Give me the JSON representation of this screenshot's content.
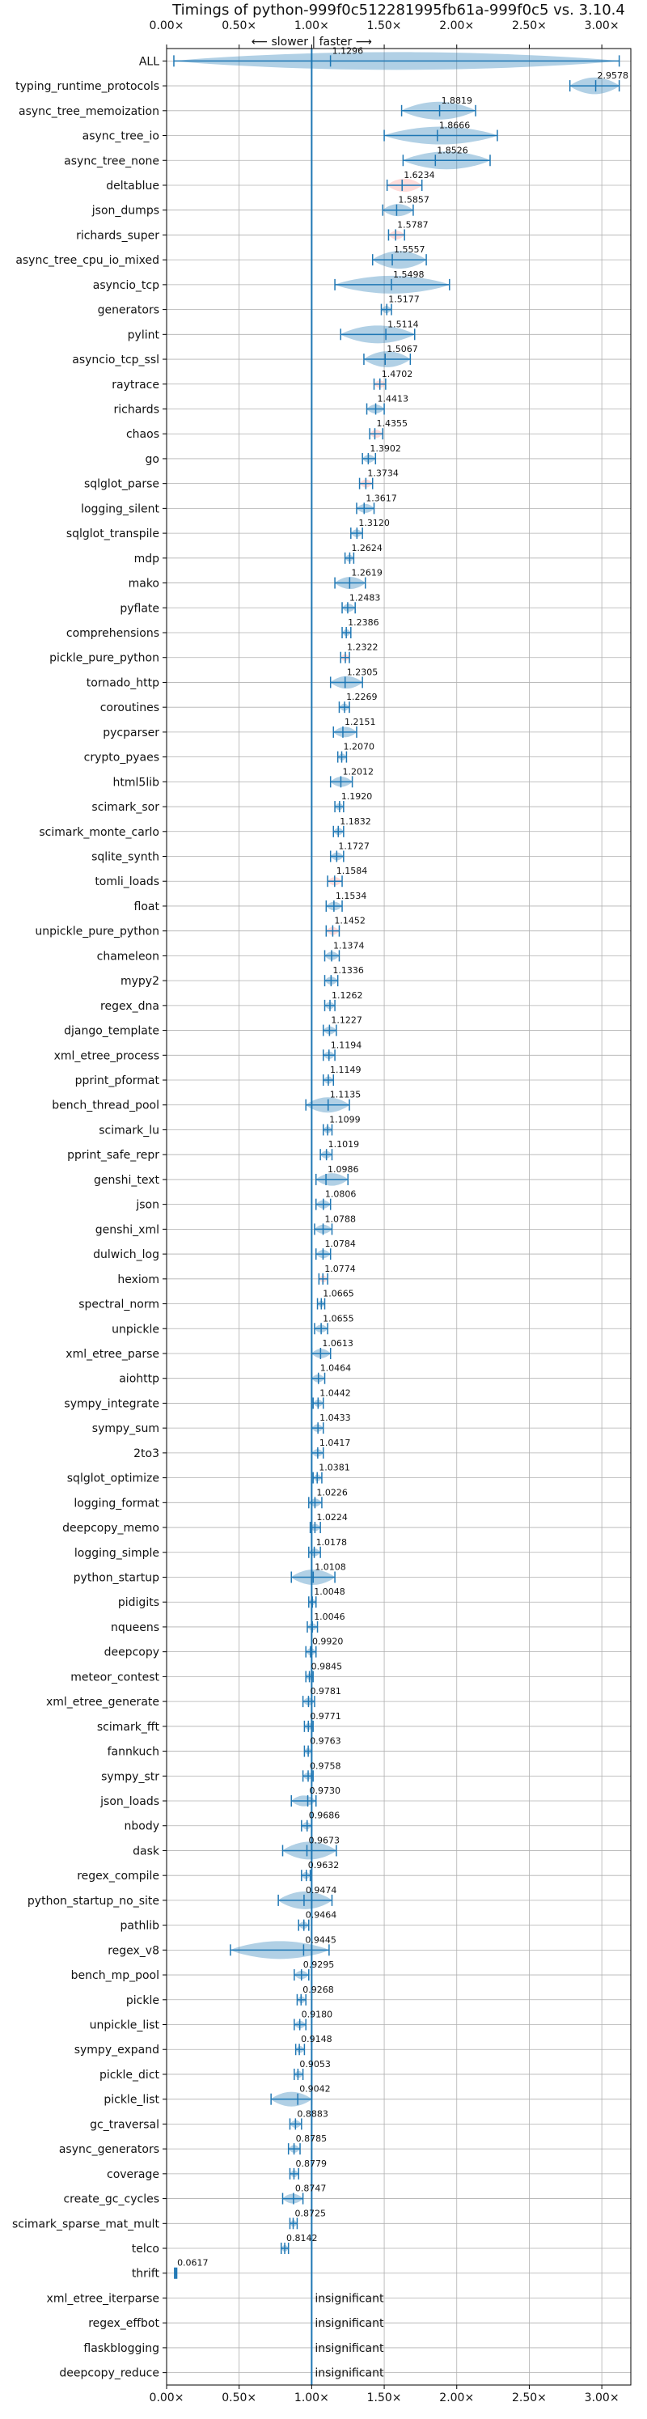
{
  "chart_data": {
    "type": "violin",
    "title": "Timings of python-999f0c512281995fb61a-999f0c5 vs. 3.10.4",
    "annotation": "⟵ slower | faster ⟶",
    "xlim": [
      0.0,
      3.2
    ],
    "xticks": [
      {
        "value": 0.0,
        "label": "0.00×"
      },
      {
        "value": 0.5,
        "label": "0.50×"
      },
      {
        "value": 1.0,
        "label": "1.00×"
      },
      {
        "value": 1.5,
        "label": "1.50×"
      },
      {
        "value": 2.0,
        "label": "2.00×"
      },
      {
        "value": 2.5,
        "label": "2.50×"
      },
      {
        "value": 3.0,
        "label": "3.00×"
      }
    ],
    "grid": true,
    "reference_line": 1.0,
    "significant_color": "#1f77b4",
    "insignificant_color": "#ff9896",
    "insignificant_label": "insignificant",
    "benchmarks": [
      {
        "name": "ALL",
        "value": 1.1296,
        "label": "1.1296",
        "min": 0.05,
        "max": 3.12
      },
      {
        "name": "typing_runtime_protocols",
        "value": 2.9578,
        "label": "2.9578",
        "min": 2.78,
        "max": 3.12
      },
      {
        "name": "async_tree_memoization",
        "value": 1.8819,
        "label": "1.8819",
        "min": 1.62,
        "max": 2.13
      },
      {
        "name": "async_tree_io",
        "value": 1.8666,
        "label": "1.8666",
        "min": 1.5,
        "max": 2.28
      },
      {
        "name": "async_tree_none",
        "value": 1.8526,
        "label": "1.8526",
        "min": 1.63,
        "max": 2.23
      },
      {
        "name": "deltablue",
        "value": 1.6234,
        "label": "1.6234",
        "min": 1.52,
        "max": 1.76,
        "insignificant": true
      },
      {
        "name": "json_dumps",
        "value": 1.5857,
        "label": "1.5857",
        "min": 1.49,
        "max": 1.7
      },
      {
        "name": "richards_super",
        "value": 1.5787,
        "label": "1.5787",
        "min": 1.53,
        "max": 1.64,
        "insignificant": true
      },
      {
        "name": "async_tree_cpu_io_mixed",
        "value": 1.5557,
        "label": "1.5557",
        "min": 1.42,
        "max": 1.79
      },
      {
        "name": "asyncio_tcp",
        "value": 1.5498,
        "label": "1.5498",
        "min": 1.16,
        "max": 1.95
      },
      {
        "name": "generators",
        "value": 1.5177,
        "label": "1.5177",
        "min": 1.48,
        "max": 1.55
      },
      {
        "name": "pylint",
        "value": 1.5114,
        "label": "1.5114",
        "min": 1.2,
        "max": 1.71
      },
      {
        "name": "asyncio_tcp_ssl",
        "value": 1.5067,
        "label": "1.5067",
        "min": 1.36,
        "max": 1.68
      },
      {
        "name": "raytrace",
        "value": 1.4702,
        "label": "1.4702",
        "min": 1.43,
        "max": 1.51,
        "insignificant": true
      },
      {
        "name": "richards",
        "value": 1.4413,
        "label": "1.4413",
        "min": 1.38,
        "max": 1.5
      },
      {
        "name": "chaos",
        "value": 1.4355,
        "label": "1.4355",
        "min": 1.4,
        "max": 1.49,
        "insignificant": true
      },
      {
        "name": "go",
        "value": 1.3902,
        "label": "1.3902",
        "min": 1.35,
        "max": 1.44
      },
      {
        "name": "sqlglot_parse",
        "value": 1.3734,
        "label": "1.3734",
        "min": 1.33,
        "max": 1.42,
        "insignificant": true
      },
      {
        "name": "logging_silent",
        "value": 1.3617,
        "label": "1.3617",
        "min": 1.31,
        "max": 1.43
      },
      {
        "name": "sqlglot_transpile",
        "value": 1.312,
        "label": "1.3120",
        "min": 1.27,
        "max": 1.35
      },
      {
        "name": "mdp",
        "value": 1.2624,
        "label": "1.2624",
        "min": 1.23,
        "max": 1.29
      },
      {
        "name": "mako",
        "value": 1.2619,
        "label": "1.2619",
        "min": 1.16,
        "max": 1.37
      },
      {
        "name": "pyflate",
        "value": 1.2483,
        "label": "1.2483",
        "min": 1.21,
        "max": 1.3
      },
      {
        "name": "comprehensions",
        "value": 1.2386,
        "label": "1.2386",
        "min": 1.21,
        "max": 1.27
      },
      {
        "name": "pickle_pure_python",
        "value": 1.2322,
        "label": "1.2322",
        "min": 1.2,
        "max": 1.26,
        "insignificant": true
      },
      {
        "name": "tornado_http",
        "value": 1.2305,
        "label": "1.2305",
        "min": 1.13,
        "max": 1.35
      },
      {
        "name": "coroutines",
        "value": 1.2269,
        "label": "1.2269",
        "min": 1.19,
        "max": 1.26
      },
      {
        "name": "pycparser",
        "value": 1.2151,
        "label": "1.2151",
        "min": 1.15,
        "max": 1.31
      },
      {
        "name": "crypto_pyaes",
        "value": 1.207,
        "label": "1.2070",
        "min": 1.18,
        "max": 1.24
      },
      {
        "name": "html5lib",
        "value": 1.2012,
        "label": "1.2012",
        "min": 1.13,
        "max": 1.28
      },
      {
        "name": "scimark_sor",
        "value": 1.192,
        "label": "1.1920",
        "min": 1.16,
        "max": 1.22
      },
      {
        "name": "scimark_monte_carlo",
        "value": 1.1832,
        "label": "1.1832",
        "min": 1.15,
        "max": 1.22
      },
      {
        "name": "sqlite_synth",
        "value": 1.1727,
        "label": "1.1727",
        "min": 1.13,
        "max": 1.22
      },
      {
        "name": "tomli_loads",
        "value": 1.1584,
        "label": "1.1584",
        "min": 1.11,
        "max": 1.21,
        "insignificant": true
      },
      {
        "name": "float",
        "value": 1.1534,
        "label": "1.1534",
        "min": 1.1,
        "max": 1.21
      },
      {
        "name": "unpickle_pure_python",
        "value": 1.1452,
        "label": "1.1452",
        "min": 1.1,
        "max": 1.19,
        "insignificant": true
      },
      {
        "name": "chameleon",
        "value": 1.1374,
        "label": "1.1374",
        "min": 1.09,
        "max": 1.19
      },
      {
        "name": "mypy2",
        "value": 1.1336,
        "label": "1.1336",
        "min": 1.09,
        "max": 1.18
      },
      {
        "name": "regex_dna",
        "value": 1.1262,
        "label": "1.1262",
        "min": 1.09,
        "max": 1.16
      },
      {
        "name": "django_template",
        "value": 1.1227,
        "label": "1.1227",
        "min": 1.08,
        "max": 1.17
      },
      {
        "name": "xml_etree_process",
        "value": 1.1194,
        "label": "1.1194",
        "min": 1.08,
        "max": 1.16
      },
      {
        "name": "pprint_pformat",
        "value": 1.1149,
        "label": "1.1149",
        "min": 1.08,
        "max": 1.15
      },
      {
        "name": "bench_thread_pool",
        "value": 1.1135,
        "label": "1.1135",
        "min": 0.96,
        "max": 1.26
      },
      {
        "name": "scimark_lu",
        "value": 1.1099,
        "label": "1.1099",
        "min": 1.08,
        "max": 1.14
      },
      {
        "name": "pprint_safe_repr",
        "value": 1.1019,
        "label": "1.1019",
        "min": 1.06,
        "max": 1.14
      },
      {
        "name": "genshi_text",
        "value": 1.0986,
        "label": "1.0986",
        "min": 1.03,
        "max": 1.25
      },
      {
        "name": "json",
        "value": 1.0806,
        "label": "1.0806",
        "min": 1.03,
        "max": 1.13
      },
      {
        "name": "genshi_xml",
        "value": 1.0788,
        "label": "1.0788",
        "min": 1.02,
        "max": 1.14
      },
      {
        "name": "dulwich_log",
        "value": 1.0784,
        "label": "1.0784",
        "min": 1.03,
        "max": 1.13
      },
      {
        "name": "hexiom",
        "value": 1.0774,
        "label": "1.0774",
        "min": 1.05,
        "max": 1.11,
        "insignificant": true
      },
      {
        "name": "spectral_norm",
        "value": 1.0665,
        "label": "1.0665",
        "min": 1.04,
        "max": 1.09
      },
      {
        "name": "unpickle",
        "value": 1.0655,
        "label": "1.0655",
        "min": 1.02,
        "max": 1.11
      },
      {
        "name": "xml_etree_parse",
        "value": 1.0613,
        "label": "1.0613",
        "min": 1.0,
        "max": 1.13
      },
      {
        "name": "aiohttp",
        "value": 1.0464,
        "label": "1.0464",
        "min": 1.0,
        "max": 1.09
      },
      {
        "name": "sympy_integrate",
        "value": 1.0442,
        "label": "1.0442",
        "min": 1.01,
        "max": 1.08
      },
      {
        "name": "sympy_sum",
        "value": 1.0433,
        "label": "1.0433",
        "min": 1.0,
        "max": 1.08
      },
      {
        "name": "2to3",
        "value": 1.0417,
        "label": "1.0417",
        "min": 1.0,
        "max": 1.08
      },
      {
        "name": "sqlglot_optimize",
        "value": 1.0381,
        "label": "1.0381",
        "min": 1.01,
        "max": 1.07
      },
      {
        "name": "logging_format",
        "value": 1.0226,
        "label": "1.0226",
        "min": 0.98,
        "max": 1.07
      },
      {
        "name": "deepcopy_memo",
        "value": 1.0224,
        "label": "1.0224",
        "min": 0.99,
        "max": 1.06
      },
      {
        "name": "logging_simple",
        "value": 1.0178,
        "label": "1.0178",
        "min": 0.98,
        "max": 1.06
      },
      {
        "name": "python_startup",
        "value": 1.0108,
        "label": "1.0108",
        "min": 0.86,
        "max": 1.16
      },
      {
        "name": "pidigits",
        "value": 1.0048,
        "label": "1.0048",
        "min": 0.98,
        "max": 1.03
      },
      {
        "name": "nqueens",
        "value": 1.0046,
        "label": "1.0046",
        "min": 0.97,
        "max": 1.04
      },
      {
        "name": "deepcopy",
        "value": 0.992,
        "label": "0.9920",
        "min": 0.96,
        "max": 1.03
      },
      {
        "name": "meteor_contest",
        "value": 0.9845,
        "label": "0.9845",
        "min": 0.96,
        "max": 1.01
      },
      {
        "name": "xml_etree_generate",
        "value": 0.9781,
        "label": "0.9781",
        "min": 0.94,
        "max": 1.02
      },
      {
        "name": "scimark_fft",
        "value": 0.9771,
        "label": "0.9771",
        "min": 0.95,
        "max": 1.01
      },
      {
        "name": "fannkuch",
        "value": 0.9763,
        "label": "0.9763",
        "min": 0.95,
        "max": 1.0
      },
      {
        "name": "sympy_str",
        "value": 0.9758,
        "label": "0.9758",
        "min": 0.94,
        "max": 1.01
      },
      {
        "name": "json_loads",
        "value": 0.973,
        "label": "0.9730",
        "min": 0.86,
        "max": 1.03
      },
      {
        "name": "nbody",
        "value": 0.9686,
        "label": "0.9686",
        "min": 0.93,
        "max": 1.0
      },
      {
        "name": "dask",
        "value": 0.9673,
        "label": "0.9673",
        "min": 0.8,
        "max": 1.17
      },
      {
        "name": "regex_compile",
        "value": 0.9632,
        "label": "0.9632",
        "min": 0.93,
        "max": 0.99
      },
      {
        "name": "python_startup_no_site",
        "value": 0.9474,
        "label": "0.9474",
        "min": 0.77,
        "max": 1.14
      },
      {
        "name": "pathlib",
        "value": 0.9464,
        "label": "0.9464",
        "min": 0.91,
        "max": 0.98
      },
      {
        "name": "regex_v8",
        "value": 0.9445,
        "label": "0.9445",
        "min": 0.44,
        "max": 1.12
      },
      {
        "name": "bench_mp_pool",
        "value": 0.9295,
        "label": "0.9295",
        "min": 0.88,
        "max": 0.98
      },
      {
        "name": "pickle",
        "value": 0.9268,
        "label": "0.9268",
        "min": 0.9,
        "max": 0.96
      },
      {
        "name": "unpickle_list",
        "value": 0.918,
        "label": "0.9180",
        "min": 0.88,
        "max": 0.96
      },
      {
        "name": "sympy_expand",
        "value": 0.9148,
        "label": "0.9148",
        "min": 0.89,
        "max": 0.95
      },
      {
        "name": "pickle_dict",
        "value": 0.9053,
        "label": "0.9053",
        "min": 0.88,
        "max": 0.94
      },
      {
        "name": "pickle_list",
        "value": 0.9042,
        "label": "0.9042",
        "min": 0.72,
        "max": 1.0
      },
      {
        "name": "gc_traversal",
        "value": 0.8883,
        "label": "0.8883",
        "min": 0.85,
        "max": 0.93
      },
      {
        "name": "async_generators",
        "value": 0.8785,
        "label": "0.8785",
        "min": 0.84,
        "max": 0.92
      },
      {
        "name": "coverage",
        "value": 0.8779,
        "label": "0.8779",
        "min": 0.85,
        "max": 0.91
      },
      {
        "name": "create_gc_cycles",
        "value": 0.8747,
        "label": "0.8747",
        "min": 0.8,
        "max": 0.94
      },
      {
        "name": "scimark_sparse_mat_mult",
        "value": 0.8725,
        "label": "0.8725",
        "min": 0.85,
        "max": 0.9
      },
      {
        "name": "telco",
        "value": 0.8142,
        "label": "0.8142",
        "min": 0.79,
        "max": 0.84
      },
      {
        "name": "thrift",
        "value": 0.0617,
        "label": "0.0617",
        "min": 0.055,
        "max": 0.07
      },
      {
        "name": "xml_etree_iterparse",
        "value": null,
        "label": "insignificant"
      },
      {
        "name": "regex_effbot",
        "value": null,
        "label": "insignificant"
      },
      {
        "name": "flaskblogging",
        "value": null,
        "label": "insignificant"
      },
      {
        "name": "deepcopy_reduce",
        "value": null,
        "label": "insignificant"
      }
    ]
  }
}
